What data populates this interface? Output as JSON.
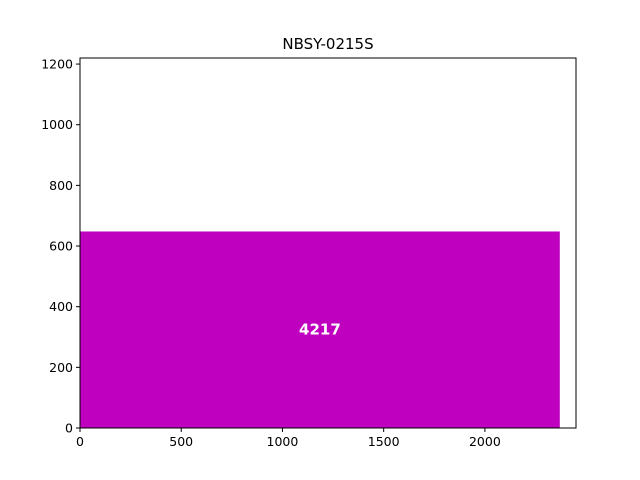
{
  "chart_data": {
    "type": "bar",
    "title": "NBSY-0215S",
    "xlabel": "",
    "ylabel": "",
    "xlim": [
      0,
      2450
    ],
    "ylim": [
      0,
      1220
    ],
    "xticks": [
      0,
      500,
      1000,
      1500,
      2000
    ],
    "yticks": [
      0,
      200,
      400,
      600,
      800,
      1000,
      1200
    ],
    "grid": false,
    "bars": [
      {
        "x_start": 0,
        "x_end": 2370,
        "value": 648,
        "label": "4217",
        "color": "#bf00bf"
      }
    ]
  }
}
